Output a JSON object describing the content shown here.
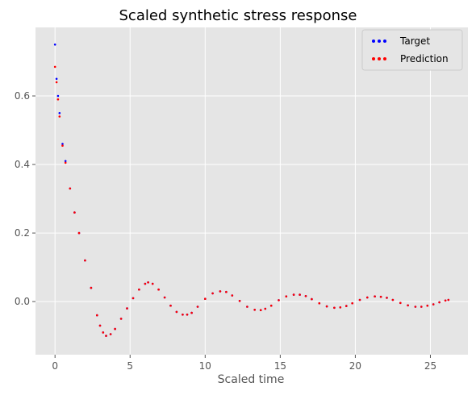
{
  "chart_data": {
    "type": "scatter",
    "title": "Scaled synthetic stress response",
    "xlabel": "Scaled time",
    "ylabel": "",
    "xlim": [
      -1.3,
      27.5
    ],
    "ylim": [
      -0.155,
      0.8
    ],
    "xticks": [
      0,
      5,
      10,
      15,
      20,
      25
    ],
    "yticks": [
      0.0,
      0.2,
      0.4,
      0.6
    ],
    "xtick_labels": [
      "0",
      "5",
      "10",
      "15",
      "20",
      "25"
    ],
    "ytick_labels": [
      "0.0",
      "0.2",
      "0.4",
      "0.6"
    ],
    "grid": true,
    "legend_position": "top-right",
    "series": [
      {
        "name": "Target",
        "color": "#0000ff",
        "x": [
          0.0,
          0.1,
          0.2,
          0.3,
          0.5,
          0.7,
          1.0,
          1.3,
          1.6,
          2.0,
          2.4,
          2.8,
          3.0,
          3.2,
          3.4,
          3.7,
          4.0,
          4.4,
          4.8,
          5.2,
          5.6,
          6.0,
          6.2,
          6.5,
          6.9,
          7.3,
          7.7,
          8.1,
          8.5,
          8.8,
          9.1,
          9.5,
          10.0,
          10.5,
          11.0,
          11.4,
          11.8,
          12.3,
          12.8,
          13.3,
          13.7,
          14.0,
          14.4,
          14.9,
          15.4,
          15.9,
          16.3,
          16.7,
          17.1,
          17.6,
          18.1,
          18.6,
          19.0,
          19.4,
          19.8,
          20.3,
          20.8,
          21.3,
          21.7,
          22.1,
          22.5,
          23.0,
          23.5,
          24.0,
          24.4,
          24.8,
          25.2,
          25.6,
          26.0,
          26.2
        ],
        "y": [
          0.75,
          0.65,
          0.6,
          0.55,
          0.46,
          0.41,
          0.33,
          0.26,
          0.2,
          0.12,
          0.04,
          -0.04,
          -0.07,
          -0.09,
          -0.1,
          -0.095,
          -0.08,
          -0.05,
          -0.02,
          0.01,
          0.035,
          0.052,
          0.056,
          0.052,
          0.035,
          0.012,
          -0.012,
          -0.03,
          -0.038,
          -0.038,
          -0.033,
          -0.015,
          0.008,
          0.024,
          0.03,
          0.028,
          0.018,
          0.002,
          -0.015,
          -0.024,
          -0.025,
          -0.021,
          -0.012,
          0.004,
          0.015,
          0.02,
          0.02,
          0.016,
          0.007,
          -0.005,
          -0.014,
          -0.018,
          -0.017,
          -0.013,
          -0.005,
          0.005,
          0.012,
          0.015,
          0.014,
          0.011,
          0.005,
          -0.004,
          -0.011,
          -0.015,
          -0.015,
          -0.012,
          -0.008,
          -0.002,
          0.003,
          0.005
        ]
      },
      {
        "name": "Prediction",
        "color": "#ff0000",
        "x": [
          0.0,
          0.1,
          0.2,
          0.3,
          0.5,
          0.7,
          1.0,
          1.3,
          1.6,
          2.0,
          2.4,
          2.8,
          3.0,
          3.2,
          3.4,
          3.7,
          4.0,
          4.4,
          4.8,
          5.2,
          5.6,
          6.0,
          6.2,
          6.5,
          6.9,
          7.3,
          7.7,
          8.1,
          8.5,
          8.8,
          9.1,
          9.5,
          10.0,
          10.5,
          11.0,
          11.4,
          11.8,
          12.3,
          12.8,
          13.3,
          13.7,
          14.0,
          14.4,
          14.9,
          15.4,
          15.9,
          16.3,
          16.7,
          17.1,
          17.6,
          18.1,
          18.6,
          19.0,
          19.4,
          19.8,
          20.3,
          20.8,
          21.3,
          21.7,
          22.1,
          22.5,
          23.0,
          23.5,
          24.0,
          24.4,
          24.8,
          25.2,
          25.6,
          26.0,
          26.2
        ],
        "y": [
          0.685,
          0.64,
          0.59,
          0.54,
          0.455,
          0.405,
          0.33,
          0.26,
          0.2,
          0.12,
          0.04,
          -0.04,
          -0.07,
          -0.09,
          -0.1,
          -0.095,
          -0.08,
          -0.05,
          -0.02,
          0.01,
          0.035,
          0.052,
          0.056,
          0.052,
          0.035,
          0.012,
          -0.012,
          -0.03,
          -0.038,
          -0.038,
          -0.033,
          -0.015,
          0.008,
          0.024,
          0.03,
          0.028,
          0.018,
          0.002,
          -0.015,
          -0.024,
          -0.025,
          -0.021,
          -0.012,
          0.004,
          0.015,
          0.02,
          0.02,
          0.016,
          0.007,
          -0.005,
          -0.014,
          -0.018,
          -0.017,
          -0.013,
          -0.005,
          0.005,
          0.012,
          0.015,
          0.014,
          0.011,
          0.005,
          -0.004,
          -0.011,
          -0.015,
          -0.015,
          -0.012,
          -0.008,
          -0.002,
          0.003,
          0.005
        ]
      }
    ]
  }
}
